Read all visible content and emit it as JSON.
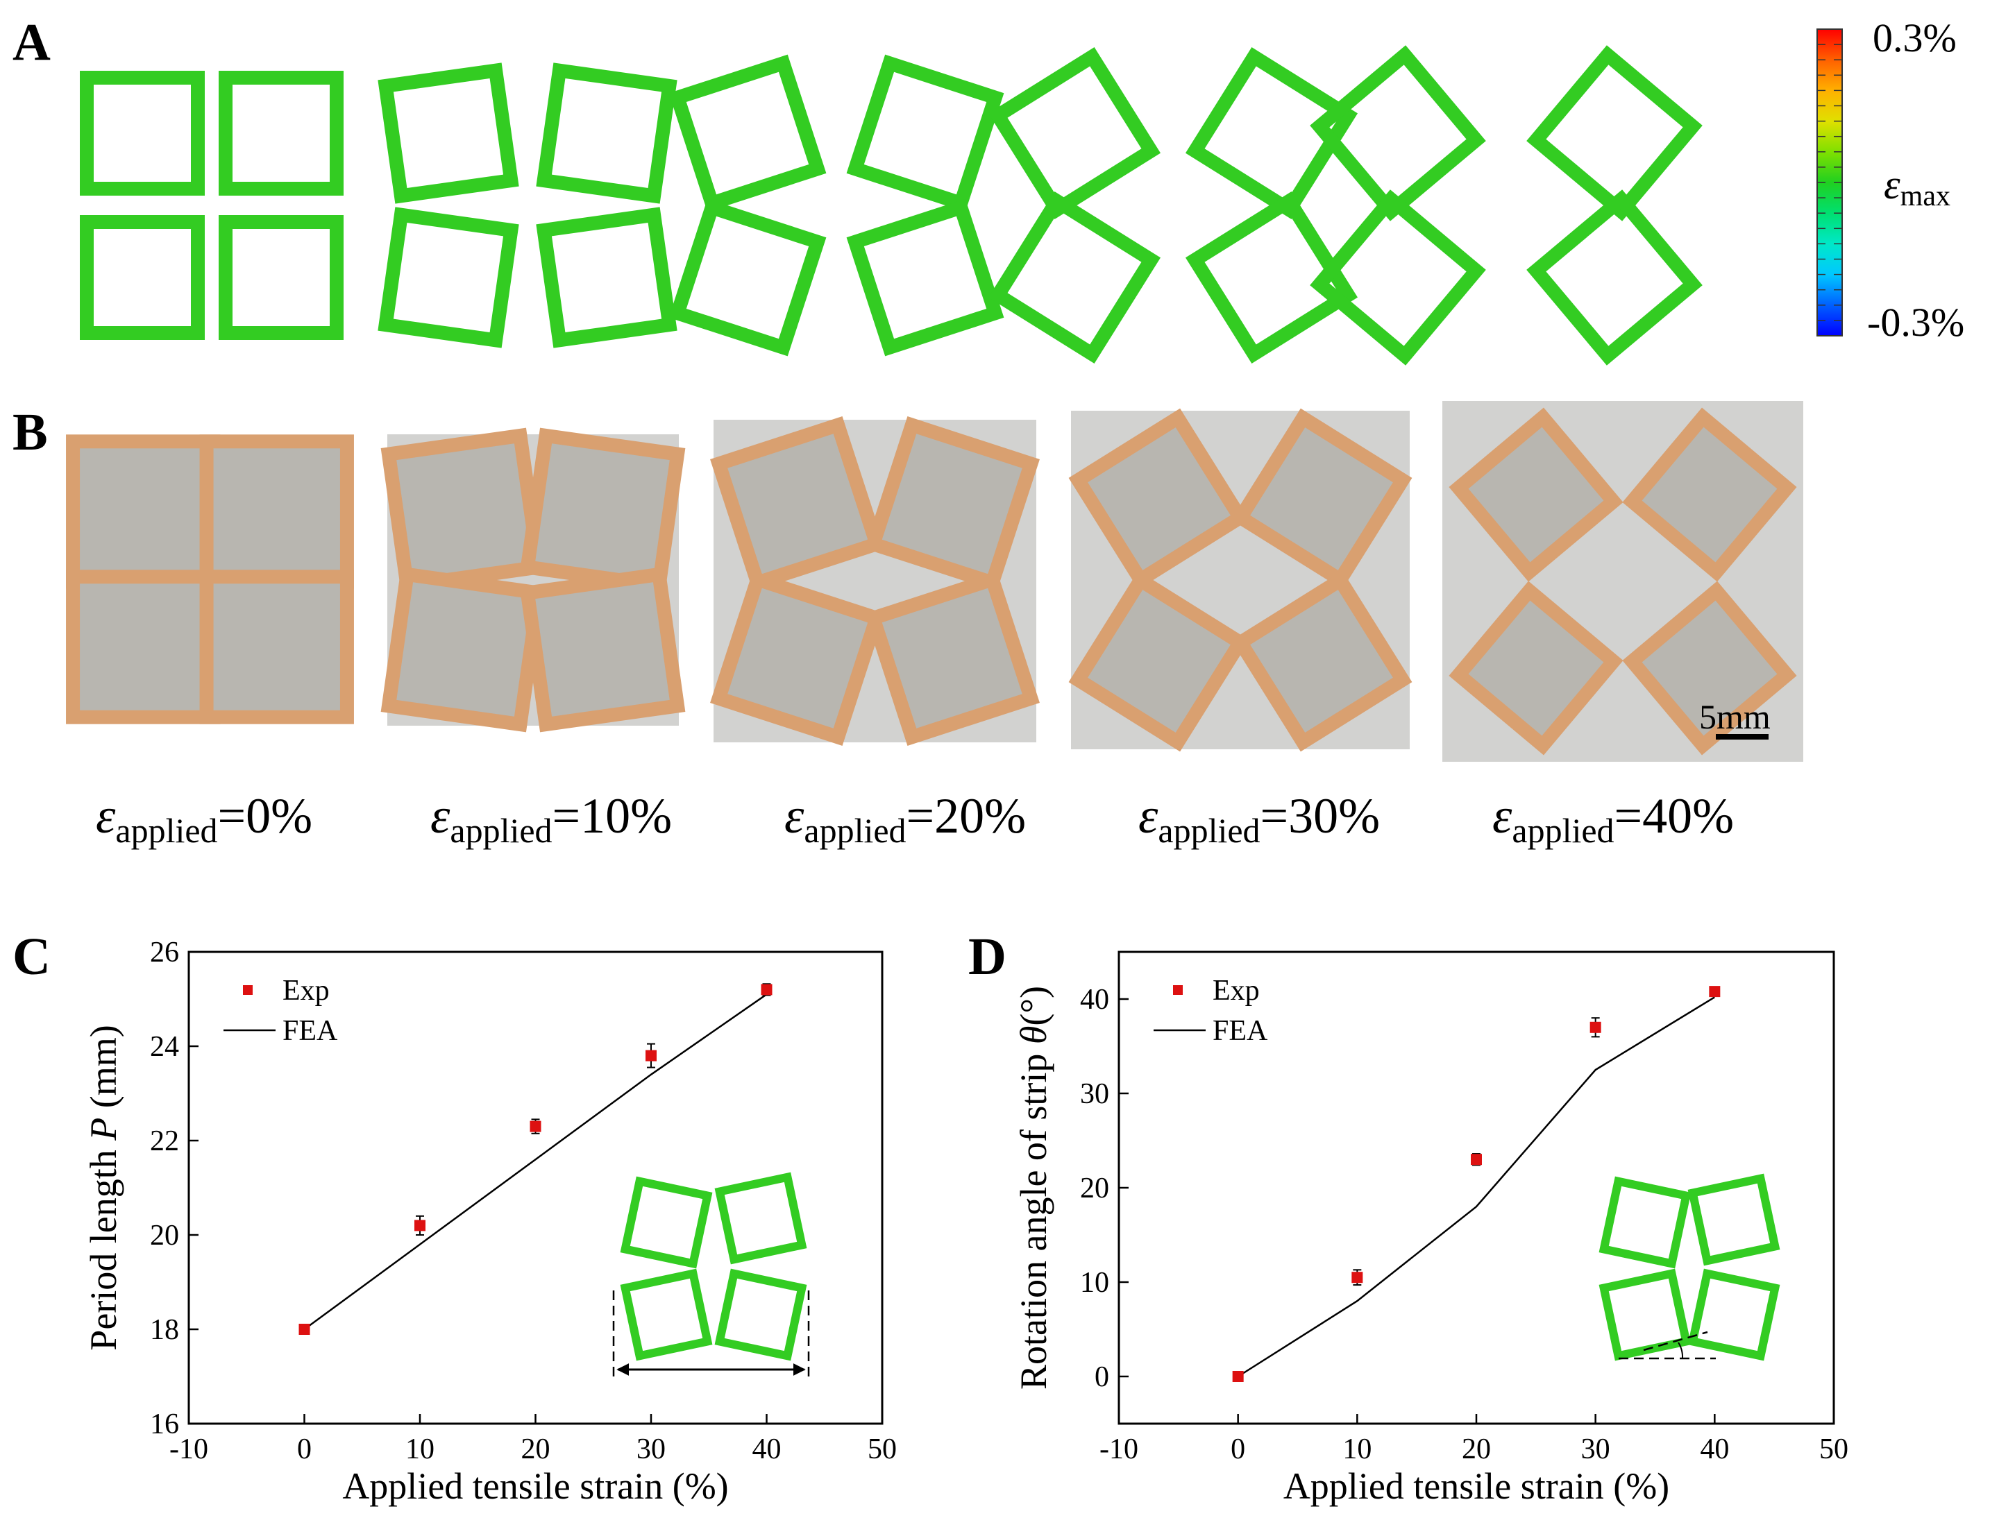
{
  "panels": {
    "a": {
      "letter": "A"
    },
    "b": {
      "letter": "B"
    },
    "c": {
      "letter": "C"
    },
    "d": {
      "letter": "D"
    }
  },
  "colorbar": {
    "max_label": "0.3%",
    "min_label": "-0.3%",
    "symbol": "ε",
    "subscript": "max",
    "stops": [
      "#0000ff",
      "#0060ff",
      "#00c8ff",
      "#00e8c8",
      "#00e070",
      "#20d020",
      "#80e000",
      "#e0e000",
      "#ffb000",
      "#ff6000",
      "#ff0000"
    ],
    "ring_color": "#33cc22"
  },
  "fea_rotations_deg": [
    0,
    8,
    18,
    32,
    40
  ],
  "photos": {
    "scale_bar": "5mm",
    "frame_color": "#d9a070",
    "fill_color": "#b8b6b0",
    "bg_color": "#d2d2d0"
  },
  "applied_labels": [
    {
      "symbol": "ε",
      "subscript": "applied",
      "value": "=0%"
    },
    {
      "symbol": "ε",
      "subscript": "applied",
      "value": "=10%"
    },
    {
      "symbol": "ε",
      "subscript": "applied",
      "value": "=20%"
    },
    {
      "symbol": "ε",
      "subscript": "applied",
      "value": "=30%"
    },
    {
      "symbol": "ε",
      "subscript": "applied",
      "value": "=40%"
    }
  ],
  "chart_data": [
    {
      "type": "scatter",
      "id": "C",
      "xlabel": "Applied tensile strain (%)",
      "ylabel_prefix": "Period length ",
      "ylabel_var": "P",
      "ylabel_suffix": " (mm)",
      "xlim": [
        -10,
        50
      ],
      "ylim": [
        16,
        26
      ],
      "xticks": [
        -10,
        0,
        10,
        20,
        30,
        40,
        50
      ],
      "yticks": [
        16,
        18,
        20,
        22,
        24,
        26
      ],
      "series": [
        {
          "name": "Exp",
          "kind": "points",
          "color": "#dd1111",
          "x": [
            0,
            10,
            20,
            30,
            40
          ],
          "y": [
            18.0,
            20.2,
            22.3,
            23.8,
            25.2
          ],
          "err": [
            0.05,
            0.2,
            0.15,
            0.25,
            0.12
          ]
        },
        {
          "name": "FEA",
          "kind": "line",
          "color": "#000000",
          "x": [
            0,
            10,
            20,
            30,
            40
          ],
          "y": [
            18.0,
            19.8,
            21.6,
            23.4,
            25.1
          ]
        }
      ],
      "legend": "top-left"
    },
    {
      "type": "scatter",
      "id": "D",
      "xlabel": "Applied tensile strain (%)",
      "ylabel_prefix": "Rotation angle of strip ",
      "ylabel_var": "θ",
      "ylabel_suffix": "(°)",
      "xlim": [
        -10,
        50
      ],
      "ylim": [
        -5,
        45
      ],
      "xticks": [
        -10,
        0,
        10,
        20,
        30,
        40,
        50
      ],
      "yticks": [
        0,
        10,
        20,
        30,
        40
      ],
      "series": [
        {
          "name": "Exp",
          "kind": "points",
          "color": "#dd1111",
          "x": [
            0,
            10,
            20,
            30,
            40
          ],
          "y": [
            0,
            10.5,
            23.0,
            37.0,
            40.8
          ],
          "err": [
            0.2,
            0.8,
            0.6,
            1.0,
            0.3
          ]
        },
        {
          "name": "FEA",
          "kind": "line",
          "color": "#000000",
          "x": [
            0,
            10,
            20,
            30,
            40
          ],
          "y": [
            0,
            8,
            18,
            32.5,
            40.2
          ]
        }
      ],
      "legend": "top-left"
    }
  ]
}
